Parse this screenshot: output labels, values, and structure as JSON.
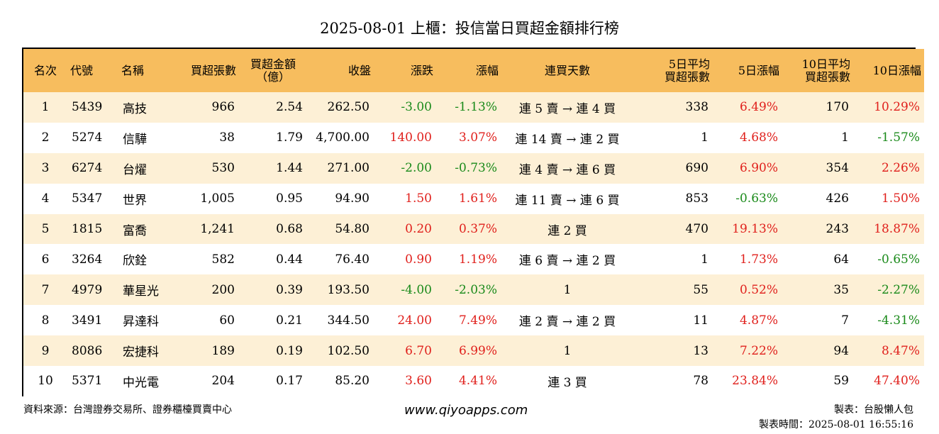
{
  "title": "2025-08-01 上櫃：投信當日買超金額排行榜",
  "headers": [
    "名次",
    "代號",
    "名稱",
    "買超張數",
    "買超金額\n（億）",
    "收盤",
    "漲跌",
    "漲幅",
    "連買天數",
    "5日平均\n買超張數",
    "5日漲幅",
    "10日平均\n買超張數",
    "10日漲幅"
  ],
  "colors": {
    "header_bg": "#f7bd5e",
    "odd_row_bg": "#fdf0d6",
    "up": "#e0201c",
    "down": "#1a8a1a"
  },
  "rows": [
    {
      "rank": "1",
      "code": "5439",
      "name": "高技",
      "net_shares": "966",
      "net_amount": "2.54",
      "close": "262.50",
      "change": "-3.00",
      "change_dir": "down",
      "pct": "-1.13%",
      "pct_dir": "down",
      "streak": "連 5 賣 → 連 4 買",
      "avg5": "338",
      "pct5": "6.49%",
      "pct5_dir": "up",
      "avg10": "170",
      "pct10": "10.29%",
      "pct10_dir": "up"
    },
    {
      "rank": "2",
      "code": "5274",
      "name": "信驊",
      "net_shares": "38",
      "net_amount": "1.79",
      "close": "4,700.00",
      "change": "140.00",
      "change_dir": "up",
      "pct": "3.07%",
      "pct_dir": "up",
      "streak": "連 14 賣 → 連 2 買",
      "avg5": "1",
      "pct5": "4.68%",
      "pct5_dir": "up",
      "avg10": "1",
      "pct10": "-1.57%",
      "pct10_dir": "down"
    },
    {
      "rank": "3",
      "code": "6274",
      "name": "台燿",
      "net_shares": "530",
      "net_amount": "1.44",
      "close": "271.00",
      "change": "-2.00",
      "change_dir": "down",
      "pct": "-0.73%",
      "pct_dir": "down",
      "streak": "連 4 賣 → 連 6 買",
      "avg5": "690",
      "pct5": "6.90%",
      "pct5_dir": "up",
      "avg10": "354",
      "pct10": "2.26%",
      "pct10_dir": "up"
    },
    {
      "rank": "4",
      "code": "5347",
      "name": "世界",
      "net_shares": "1,005",
      "net_amount": "0.95",
      "close": "94.90",
      "change": "1.50",
      "change_dir": "up",
      "pct": "1.61%",
      "pct_dir": "up",
      "streak": "連 11 賣 → 連 6 買",
      "avg5": "853",
      "pct5": "-0.63%",
      "pct5_dir": "down",
      "avg10": "426",
      "pct10": "1.50%",
      "pct10_dir": "up"
    },
    {
      "rank": "5",
      "code": "1815",
      "name": "富喬",
      "net_shares": "1,241",
      "net_amount": "0.68",
      "close": "54.80",
      "change": "0.20",
      "change_dir": "up",
      "pct": "0.37%",
      "pct_dir": "up",
      "streak": "連 2 買",
      "avg5": "470",
      "pct5": "19.13%",
      "pct5_dir": "up",
      "avg10": "243",
      "pct10": "18.87%",
      "pct10_dir": "up"
    },
    {
      "rank": "6",
      "code": "3264",
      "name": "欣銓",
      "net_shares": "582",
      "net_amount": "0.44",
      "close": "76.40",
      "change": "0.90",
      "change_dir": "up",
      "pct": "1.19%",
      "pct_dir": "up",
      "streak": "連 6 賣 → 連 2 買",
      "avg5": "1",
      "pct5": "1.73%",
      "pct5_dir": "up",
      "avg10": "64",
      "pct10": "-0.65%",
      "pct10_dir": "down"
    },
    {
      "rank": "7",
      "code": "4979",
      "name": "華星光",
      "net_shares": "200",
      "net_amount": "0.39",
      "close": "193.50",
      "change": "-4.00",
      "change_dir": "down",
      "pct": "-2.03%",
      "pct_dir": "down",
      "streak": "1",
      "avg5": "55",
      "pct5": "0.52%",
      "pct5_dir": "up",
      "avg10": "35",
      "pct10": "-2.27%",
      "pct10_dir": "down"
    },
    {
      "rank": "8",
      "code": "3491",
      "name": "昇達科",
      "net_shares": "60",
      "net_amount": "0.21",
      "close": "344.50",
      "change": "24.00",
      "change_dir": "up",
      "pct": "7.49%",
      "pct_dir": "up",
      "streak": "連 2 賣 → 連 2 買",
      "avg5": "11",
      "pct5": "4.87%",
      "pct5_dir": "up",
      "avg10": "7",
      "pct10": "-4.31%",
      "pct10_dir": "down"
    },
    {
      "rank": "9",
      "code": "8086",
      "name": "宏捷科",
      "net_shares": "189",
      "net_amount": "0.19",
      "close": "102.50",
      "change": "6.70",
      "change_dir": "up",
      "pct": "6.99%",
      "pct_dir": "up",
      "streak": "1",
      "avg5": "13",
      "pct5": "7.22%",
      "pct5_dir": "up",
      "avg10": "94",
      "pct10": "8.47%",
      "pct10_dir": "up"
    },
    {
      "rank": "10",
      "code": "5371",
      "name": "中光電",
      "net_shares": "204",
      "net_amount": "0.17",
      "close": "85.20",
      "change": "3.60",
      "change_dir": "up",
      "pct": "4.41%",
      "pct_dir": "up",
      "streak": "連 3 買",
      "avg5": "78",
      "pct5": "23.84%",
      "pct5_dir": "up",
      "avg10": "59",
      "pct10": "47.40%",
      "pct10_dir": "up"
    }
  ],
  "footer": {
    "source": "資料來源：台灣證券交易所、證券櫃檯買賣中心",
    "website": "www.qiyoapps.com",
    "maker": "製表：台股懶人包",
    "made_time": "製表時間：2025-08-01 16:55:16"
  }
}
